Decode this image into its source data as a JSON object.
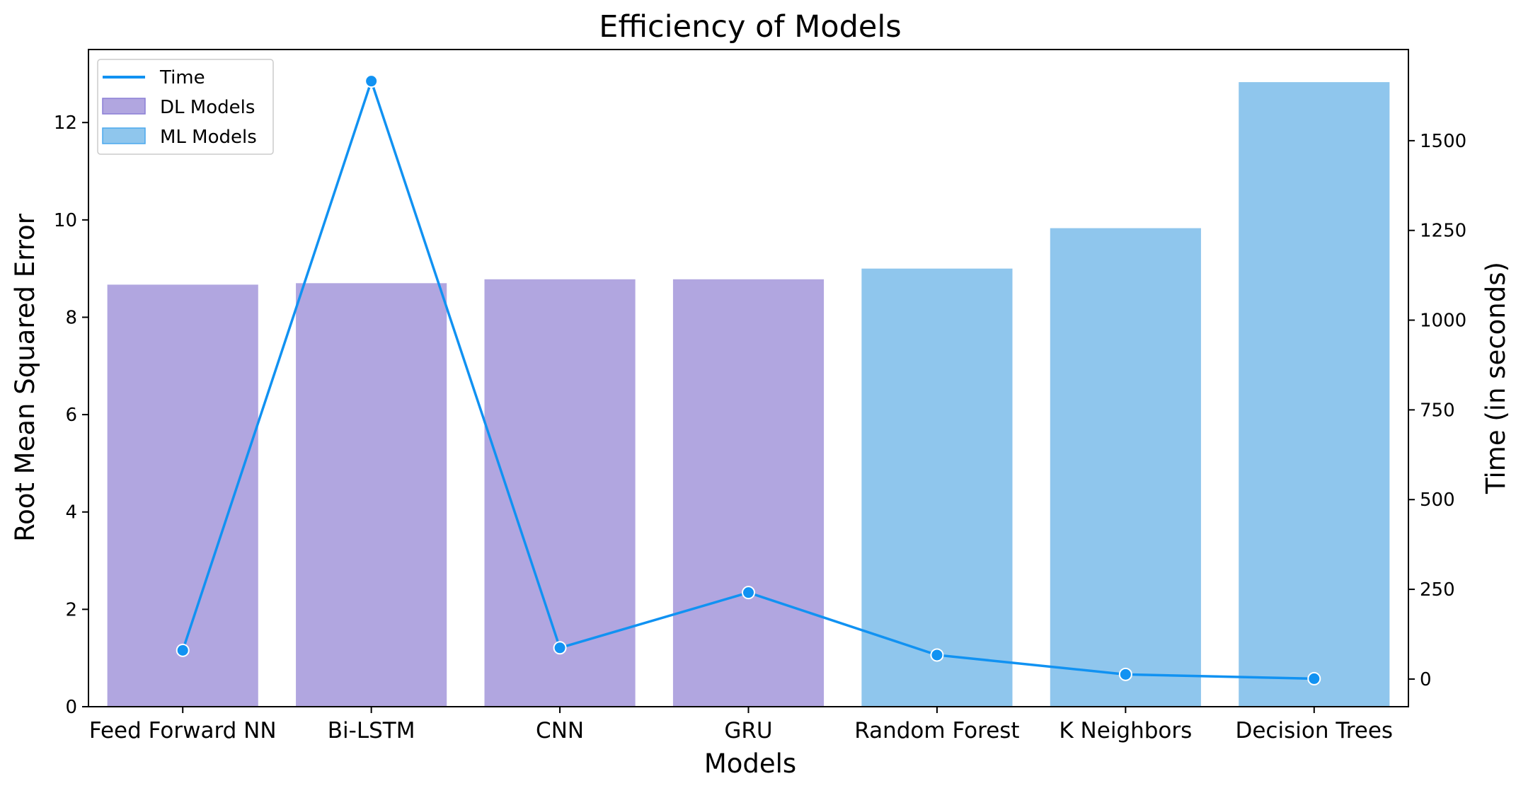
{
  "chart_data": {
    "type": "bar",
    "title": "Efficiency of Models",
    "xlabel": "Models",
    "ylabel": "Root Mean Squared Error",
    "y2label": "Time (in seconds)",
    "categories": [
      "Feed Forward NN",
      "Bi-LSTM",
      "CNN",
      "GRU",
      "Random Forest",
      "K Neighbors",
      "Decision Trees"
    ],
    "series": [
      {
        "name": "DL Models",
        "type": "bar",
        "axis": "left",
        "color": "#b1a6e0",
        "values": [
          8.67,
          8.7,
          8.78,
          8.78,
          null,
          null,
          null
        ]
      },
      {
        "name": "ML Models",
        "type": "bar",
        "axis": "left",
        "color": "#8fc6ed",
        "values": [
          null,
          null,
          null,
          null,
          9.0,
          9.83,
          12.83
        ]
      },
      {
        "name": "Time",
        "type": "line",
        "axis": "right",
        "color": "#1192f2",
        "values": [
          80,
          1666,
          87,
          241,
          67,
          13,
          1
        ]
      }
    ],
    "ylim": [
      0,
      13.5
    ],
    "y_ticks": [
      0,
      2,
      4,
      6,
      8,
      10,
      12
    ],
    "y2lim": [
      -77,
      1754
    ],
    "y2_ticks": [
      0,
      250,
      500,
      750,
      1000,
      1250,
      1500
    ],
    "legend_position": "top-left",
    "grid": false
  }
}
